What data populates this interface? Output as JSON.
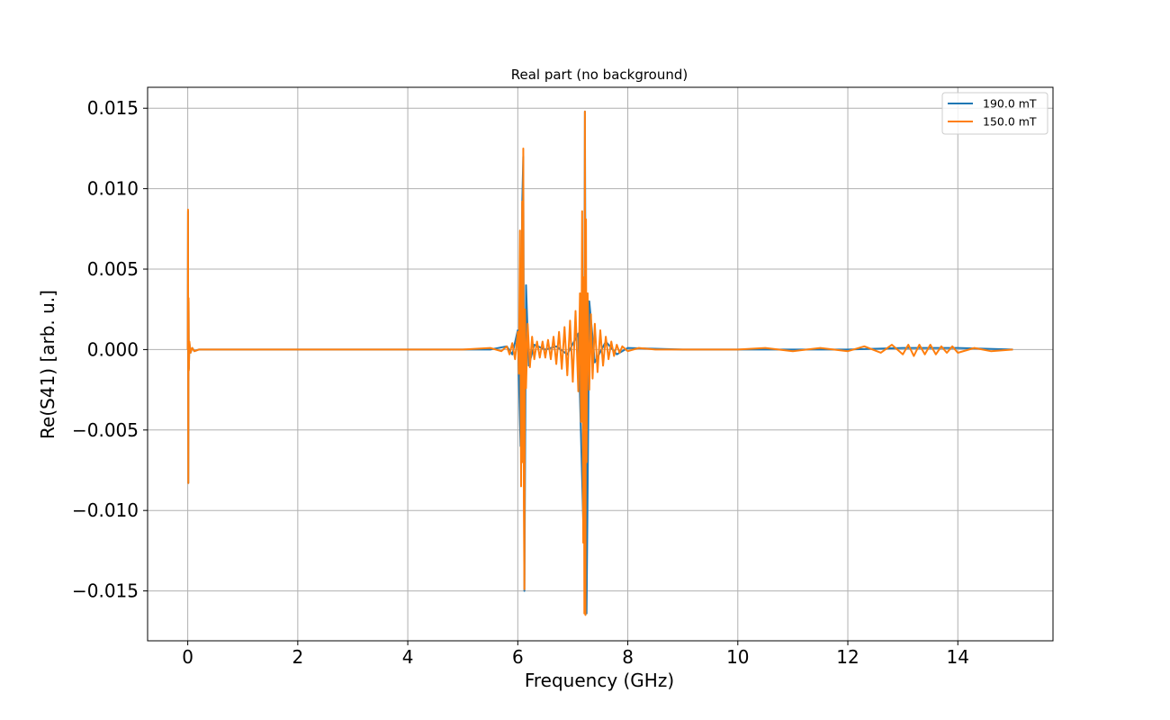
{
  "chart_data": {
    "type": "line",
    "title": "Real part (no background)",
    "xlabel": "Frequency (GHz)",
    "ylabel": "Re(S41) [arb. u.]",
    "xlim": [
      -0.73,
      15.73
    ],
    "ylim": [
      -0.0181,
      0.0163
    ],
    "xticks": [
      0,
      2,
      4,
      6,
      8,
      10,
      12,
      14
    ],
    "xtick_labels": [
      "0",
      "2",
      "4",
      "6",
      "8",
      "10",
      "12",
      "14"
    ],
    "yticks": [
      0.015,
      0.01,
      0.005,
      0.0,
      -0.005,
      -0.01,
      -0.015
    ],
    "ytick_labels": [
      "0.015",
      "0.010",
      "0.005",
      "0.000",
      "−0.005",
      "−0.010",
      "−0.015"
    ],
    "grid": true,
    "legend_position": "top-right",
    "series": [
      {
        "name": "190.0 mT",
        "color": "#1f77b4",
        "x": [
          0.0,
          0.005,
          0.01,
          0.015,
          0.02,
          0.03,
          0.05,
          0.08,
          0.12,
          0.2,
          0.4,
          1.0,
          2.0,
          3.0,
          4.0,
          5.0,
          5.5,
          5.8,
          5.9,
          6.0,
          6.05,
          6.08,
          6.1,
          6.12,
          6.15,
          6.2,
          6.3,
          6.5,
          6.7,
          6.9,
          7.1,
          7.2,
          7.22,
          7.25,
          7.3,
          7.4,
          7.6,
          7.8,
          8.0,
          9.0,
          10.0,
          11.0,
          12.0,
          13.0,
          14.0,
          15.0
        ],
        "y": [
          0.0,
          0.0086,
          -0.0083,
          0.003,
          -0.0012,
          0.0004,
          -0.0002,
          0.0001,
          -0.0001,
          0.0,
          0.0,
          0.0,
          0.0,
          0.0,
          0.0,
          0.0,
          0.0,
          0.0002,
          -0.0003,
          0.0012,
          -0.006,
          0.009,
          0.012,
          -0.015,
          0.004,
          -0.001,
          0.0003,
          0.0,
          0.0002,
          -0.0003,
          0.001,
          -0.012,
          0.0148,
          -0.0164,
          0.003,
          -0.0008,
          0.0005,
          -0.0003,
          0.0001,
          0.0,
          0.0,
          0.0,
          0.0,
          0.0001,
          0.0001,
          0.0
        ]
      },
      {
        "name": "150.0 mT",
        "color": "#ff7f0e",
        "x": [
          0.0,
          0.005,
          0.01,
          0.015,
          0.02,
          0.03,
          0.05,
          0.08,
          0.12,
          0.2,
          0.4,
          1.0,
          2.0,
          3.0,
          4.0,
          5.0,
          5.5,
          5.7,
          5.8,
          5.85,
          5.9,
          5.95,
          6.0,
          6.02,
          6.04,
          6.06,
          6.08,
          6.09,
          6.1,
          6.11,
          6.12,
          6.13,
          6.15,
          6.18,
          6.22,
          6.26,
          6.3,
          6.35,
          6.4,
          6.45,
          6.5,
          6.55,
          6.6,
          6.65,
          6.7,
          6.75,
          6.8,
          6.85,
          6.9,
          6.95,
          7.0,
          7.05,
          7.1,
          7.13,
          7.15,
          7.17,
          7.19,
          7.2,
          7.21,
          7.22,
          7.23,
          7.24,
          7.25,
          7.27,
          7.3,
          7.33,
          7.36,
          7.4,
          7.45,
          7.5,
          7.55,
          7.6,
          7.65,
          7.7,
          7.75,
          7.8,
          7.85,
          7.9,
          8.0,
          8.2,
          8.5,
          9.0,
          10.0,
          10.5,
          11.0,
          11.5,
          12.0,
          12.3,
          12.6,
          12.8,
          13.0,
          13.1,
          13.2,
          13.3,
          13.4,
          13.5,
          13.6,
          13.7,
          13.8,
          13.9,
          14.0,
          14.3,
          14.6,
          15.0
        ],
        "y": [
          0.0,
          0.0087,
          -0.0083,
          0.0032,
          -0.0013,
          0.0005,
          -0.0002,
          0.0001,
          -0.0001,
          0.0,
          0.0,
          0.0,
          0.0,
          0.0,
          0.0,
          0.0,
          0.0001,
          -0.0001,
          0.0002,
          -0.0003,
          0.0004,
          -0.0006,
          0.0011,
          -0.0015,
          0.0074,
          -0.0085,
          0.0092,
          -0.007,
          0.0125,
          -0.0095,
          -0.0149,
          0.0025,
          -0.0024,
          0.0016,
          -0.0011,
          0.0008,
          -0.0006,
          0.0005,
          -0.0005,
          0.0005,
          -0.0005,
          0.0006,
          -0.0006,
          0.0008,
          -0.0009,
          0.0011,
          -0.0012,
          0.0014,
          -0.0016,
          0.0018,
          -0.002,
          0.0024,
          -0.0026,
          0.0035,
          -0.0045,
          0.0086,
          -0.012,
          0.0045,
          -0.0164,
          0.0148,
          -0.0165,
          0.0081,
          -0.007,
          0.0035,
          -0.0025,
          0.0022,
          -0.0018,
          0.0016,
          -0.0014,
          0.0012,
          -0.001,
          0.0008,
          -0.0006,
          0.0005,
          -0.0004,
          0.0003,
          -0.0002,
          0.0002,
          -0.0001,
          0.0001,
          0.0,
          0.0,
          0.0,
          0.0001,
          -0.0001,
          0.0001,
          -0.0001,
          0.0002,
          -0.0002,
          0.0003,
          -0.0003,
          0.0003,
          -0.0004,
          0.0003,
          -0.0003,
          0.0003,
          -0.0003,
          0.0002,
          -0.0002,
          0.0002,
          -0.0002,
          0.0001,
          -0.0001,
          0.0
        ]
      }
    ]
  }
}
